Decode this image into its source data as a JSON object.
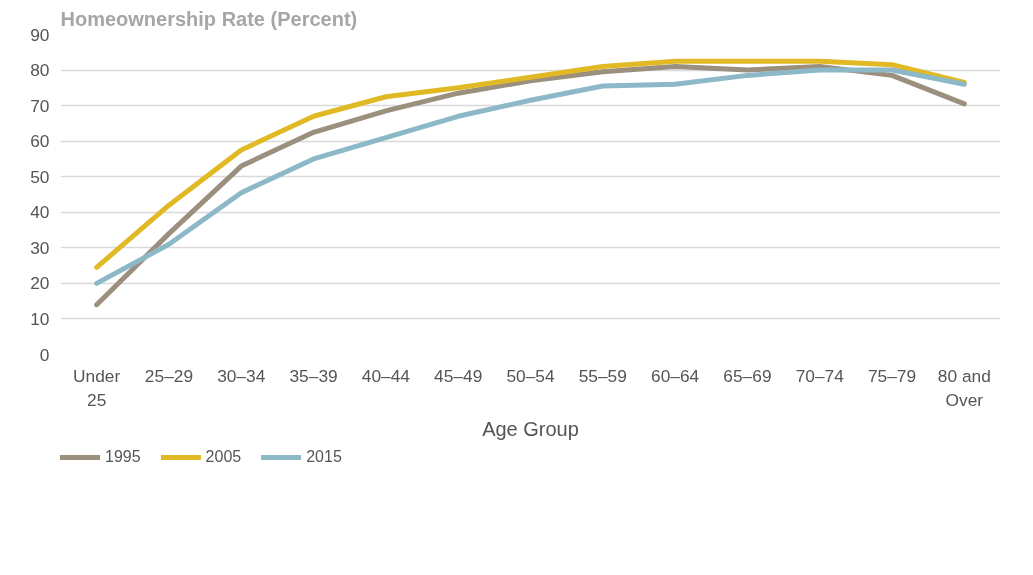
{
  "chart_data": {
    "type": "line",
    "title": "Homeownership Rate (Percent)",
    "xlabel": "Age Group",
    "categories": [
      "Under\n25",
      "25–29",
      "30–34",
      "35–39",
      "40–44",
      "45–49",
      "50–54",
      "55–59",
      "60–64",
      "65–69",
      "70–74",
      "75–79",
      "80 and\nOver"
    ],
    "series": [
      {
        "name": "1995",
        "color": "#9b8f7e",
        "values": [
          14,
          34,
          53,
          62.5,
          68.5,
          73.5,
          77,
          79.5,
          81,
          80,
          81,
          78.5,
          70.5
        ]
      },
      {
        "name": "2005",
        "color": "#e0b924",
        "values": [
          24.5,
          42,
          57.5,
          67,
          72.5,
          75,
          78,
          81,
          82.5,
          82.5,
          82.5,
          81.5,
          76.5
        ]
      },
      {
        "name": "2015",
        "color": "#8cb8c8",
        "values": [
          20,
          31,
          45.5,
          55,
          61,
          67,
          71.5,
          75.5,
          76,
          78.5,
          80,
          80,
          76
        ]
      }
    ],
    "ylim": [
      0,
      90
    ],
    "yticks": [
      0,
      10,
      20,
      30,
      40,
      50,
      60,
      70,
      80,
      90
    ],
    "grid": "y",
    "legend": "bottom left",
    "line_style": "solid"
  }
}
